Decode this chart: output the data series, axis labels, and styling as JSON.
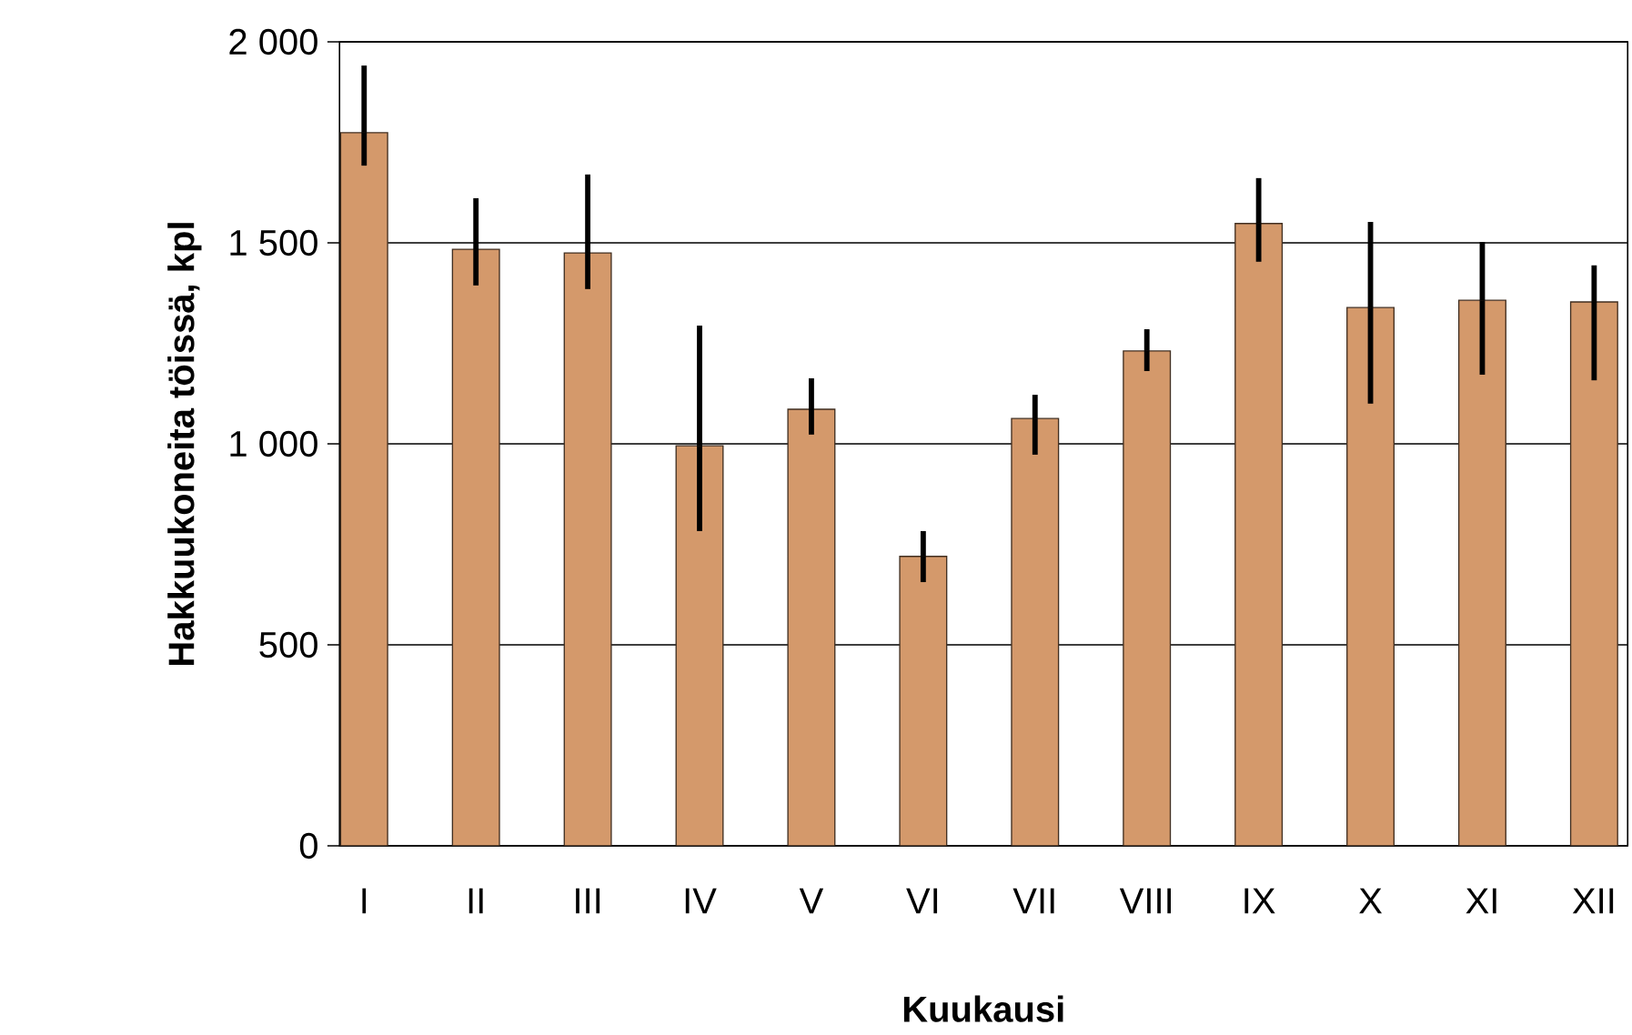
{
  "chart_data": {
    "type": "bar",
    "xlabel": "Kuukausi",
    "ylabel": "Hakkuukoneita töissä, kpl",
    "categories": [
      "I",
      "II",
      "III",
      "IV",
      "V",
      "VI",
      "VII",
      "VIII",
      "IX",
      "X",
      "XI",
      "XII"
    ],
    "values": [
      1774,
      1484,
      1475,
      995,
      1086,
      720,
      1063,
      1231,
      1548,
      1339,
      1357,
      1353
    ],
    "errors": [
      [
        1692,
        1941
      ],
      [
        1394,
        1611
      ],
      [
        1385,
        1670
      ],
      [
        783,
        1294
      ],
      [
        1023,
        1163
      ],
      [
        656,
        783
      ],
      [
        973,
        1122
      ],
      [
        1181,
        1285
      ],
      [
        1453,
        1661
      ],
      [
        1100,
        1552
      ],
      [
        1172,
        1502
      ],
      [
        1158,
        1444
      ]
    ],
    "color": "#d4996b",
    "ylim": [
      0,
      2000
    ],
    "yticks": [
      0,
      500,
      {
        "value": 1000,
        "label": "1 000"
      },
      {
        "value": 1500,
        "label": "1 500"
      },
      {
        "value": 2000,
        "label": "2 000"
      }
    ],
    "grid": "y"
  }
}
